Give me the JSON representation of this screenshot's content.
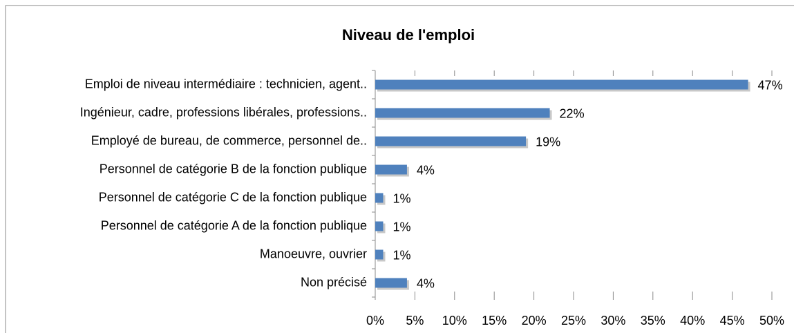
{
  "chart_data": {
    "type": "hbar",
    "title": "Niveau de l'emploi",
    "categories": [
      "Emploi de niveau intermédiaire : technicien, agent..",
      "Ingénieur, cadre, professions libérales, professions..",
      "Employé de bureau, de commerce, personnel de..",
      "Personnel de catégorie B de la fonction publique",
      "Personnel de catégorie C de la fonction publique",
      "Personnel de catégorie A de la fonction publique",
      "Manoeuvre, ouvrier",
      "Non précisé"
    ],
    "values": [
      47,
      22,
      19,
      4,
      1,
      1,
      1,
      4
    ],
    "value_labels": [
      "47%",
      "22%",
      "19%",
      "4%",
      "1%",
      "1%",
      "1%",
      "4%"
    ],
    "color": "#4f81bd",
    "xlim": [
      0,
      50
    ],
    "xticks": [
      {
        "value": 0,
        "label": "0%"
      },
      {
        "value": 5,
        "label": "5%"
      },
      {
        "value": 10,
        "label": "10%"
      },
      {
        "value": 15,
        "label": "15%"
      },
      {
        "value": 20,
        "label": "20%"
      },
      {
        "value": 25,
        "label": "25%"
      },
      {
        "value": 30,
        "label": "30%"
      },
      {
        "value": 35,
        "label": "35%"
      },
      {
        "value": 40,
        "label": "40%"
      },
      {
        "value": 45,
        "label": "45%"
      },
      {
        "value": 50,
        "label": "50%"
      }
    ]
  }
}
